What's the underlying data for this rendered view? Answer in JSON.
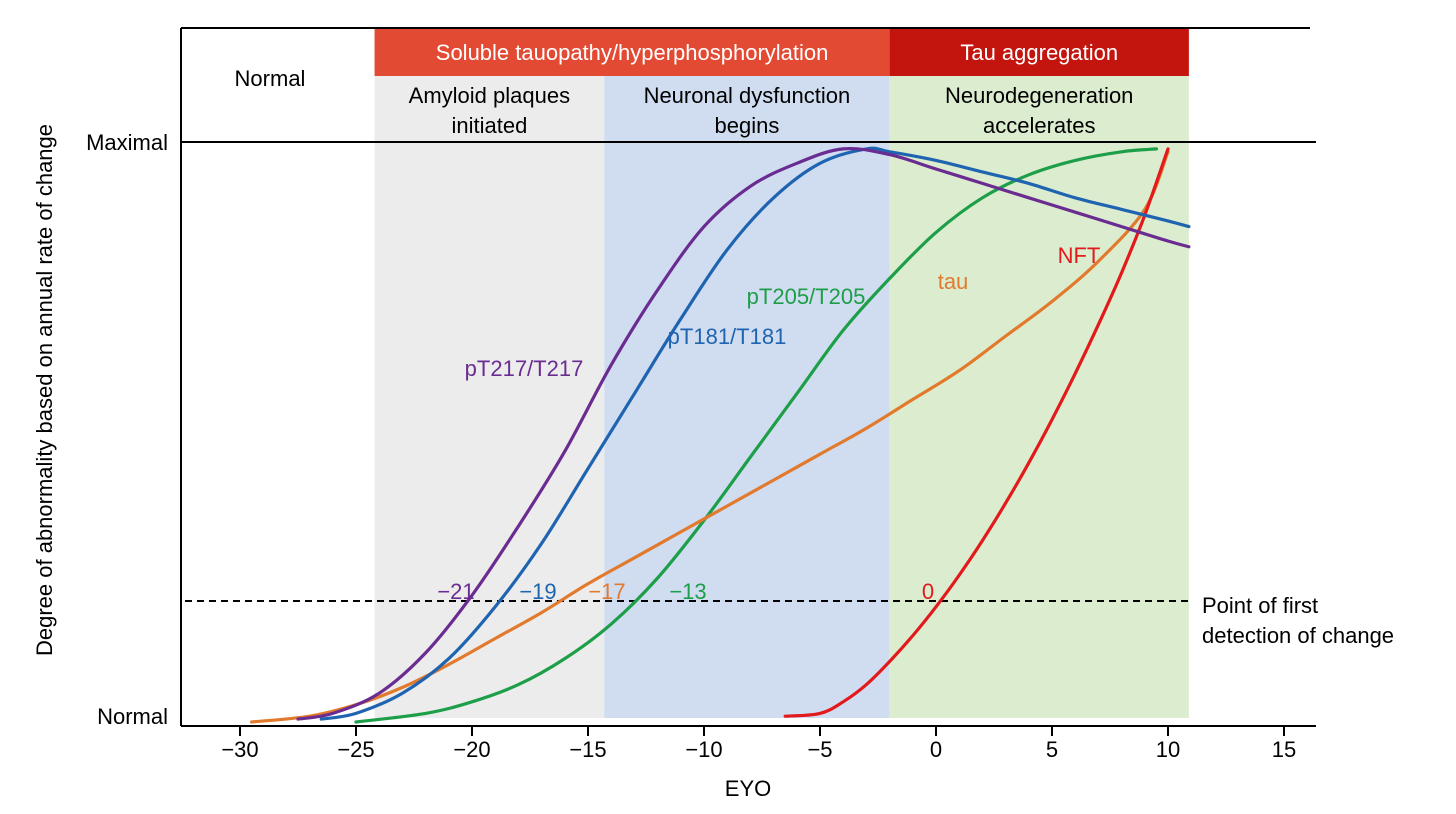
{
  "chart_data": {
    "type": "line",
    "xlabel": "EYO",
    "ylabel": "Degree of abnormality based on annual rate of change",
    "xlim": [
      -32,
      16
    ],
    "ylim": [
      0,
      100
    ],
    "x_ticks": [
      "−30",
      "−25",
      "−20",
      "−15",
      "−10",
      "−5",
      "0",
      "5",
      "10",
      "15"
    ],
    "y_tick_labels": {
      "maximal": "Maximal",
      "normal": "Normal"
    },
    "detection_threshold": {
      "y": 21,
      "label_line1": "Point of first",
      "label_line2": "detection of change"
    },
    "regions": [
      {
        "name": "amyloid",
        "x": [
          -24.2,
          -14.3
        ],
        "color": "#ececec",
        "label_line1": "Amyloid plaques",
        "label_line2": "initiated"
      },
      {
        "name": "neuronal",
        "x": [
          -14.3,
          -2.0
        ],
        "color": "#d0ddf0",
        "label_line1": "Neuronal dysfunction",
        "label_line2": "begins"
      },
      {
        "name": "neurodegeneration",
        "x": [
          -2.0,
          10.9
        ],
        "color": "#dceccf",
        "label_line1": "Neurodegeneration",
        "label_line2": "accelerates"
      }
    ],
    "phase_bars": [
      {
        "name": "soluble",
        "label": "Soluble tauopathy/hyperphosphorylation",
        "x": [
          -24.2,
          -2.0
        ],
        "color": "#e34a33"
      },
      {
        "name": "aggregation",
        "label": "Tau aggregation",
        "x": [
          -2.0,
          10.9
        ],
        "color": "#c4140e"
      }
    ],
    "normal_phase_label": "Normal",
    "series": [
      {
        "name": "pT217/T217",
        "color": "#6a2c91",
        "x": [
          -27.5,
          -26,
          -24,
          -22,
          -20,
          -18,
          -16,
          -14,
          -12,
          -10,
          -8,
          -6,
          -4,
          -2,
          0,
          2,
          4,
          6,
          8,
          10,
          10.9
        ],
        "values": [
          0.5,
          1.5,
          5,
          12,
          22,
          34,
          47,
          62,
          75,
          86,
          93,
          97,
          99.5,
          98.5,
          96,
          93.5,
          91,
          88.5,
          86,
          83.5,
          82.5
        ],
        "first_detection": "−21"
      },
      {
        "name": "pT181/T181",
        "color": "#1f64b0",
        "x": [
          -26.5,
          -25,
          -23,
          -21,
          -19,
          -17,
          -15,
          -13,
          -11,
          -9,
          -7,
          -5,
          -3,
          -2,
          0,
          2,
          4,
          6,
          8,
          10,
          10.9
        ],
        "values": [
          0.5,
          1.5,
          5,
          11,
          20,
          31,
          44,
          57,
          70,
          82,
          91,
          97,
          99.5,
          99,
          97.5,
          95.5,
          93.5,
          91,
          89,
          87,
          86
        ],
        "first_detection": "−19"
      },
      {
        "name": "tau",
        "color": "#e27a2e",
        "x": [
          -29.5,
          -27,
          -25,
          -23,
          -21,
          -19,
          -17,
          -15,
          -13,
          -11,
          -9,
          -7,
          -5,
          -3,
          -1,
          1,
          3,
          5,
          7,
          9,
          10
        ],
        "values": [
          0,
          1,
          3,
          6,
          10,
          14.5,
          19,
          24,
          28.5,
          33,
          37.5,
          42,
          46.5,
          51,
          56,
          61,
          67,
          73,
          80,
          89,
          99
        ],
        "first_detection": "−17"
      },
      {
        "name": "pT205/T205",
        "color": "#1d9e48",
        "x": [
          -25,
          -22,
          -20,
          -18,
          -16,
          -14,
          -12,
          -10,
          -8,
          -6,
          -4,
          -2,
          0,
          2,
          4,
          6,
          8,
          9.5
        ],
        "values": [
          0,
          1.5,
          3.5,
          6.5,
          11,
          17,
          25,
          35,
          46,
          57,
          68,
          77,
          85,
          91,
          95,
          97.5,
          99,
          99.5
        ],
        "first_detection": "−13"
      },
      {
        "name": "NFT",
        "color": "#e31a1c",
        "x": [
          -6.5,
          -5,
          -4,
          -3,
          -2,
          -1,
          0,
          1,
          2,
          3,
          4,
          5,
          6,
          7,
          8,
          9,
          10
        ],
        "values": [
          1,
          1.5,
          3.5,
          6.5,
          10.5,
          15,
          20,
          25.5,
          31.5,
          38,
          45,
          52.5,
          60.5,
          69,
          78,
          88,
          99.5
        ],
        "first_detection": "0"
      }
    ]
  }
}
